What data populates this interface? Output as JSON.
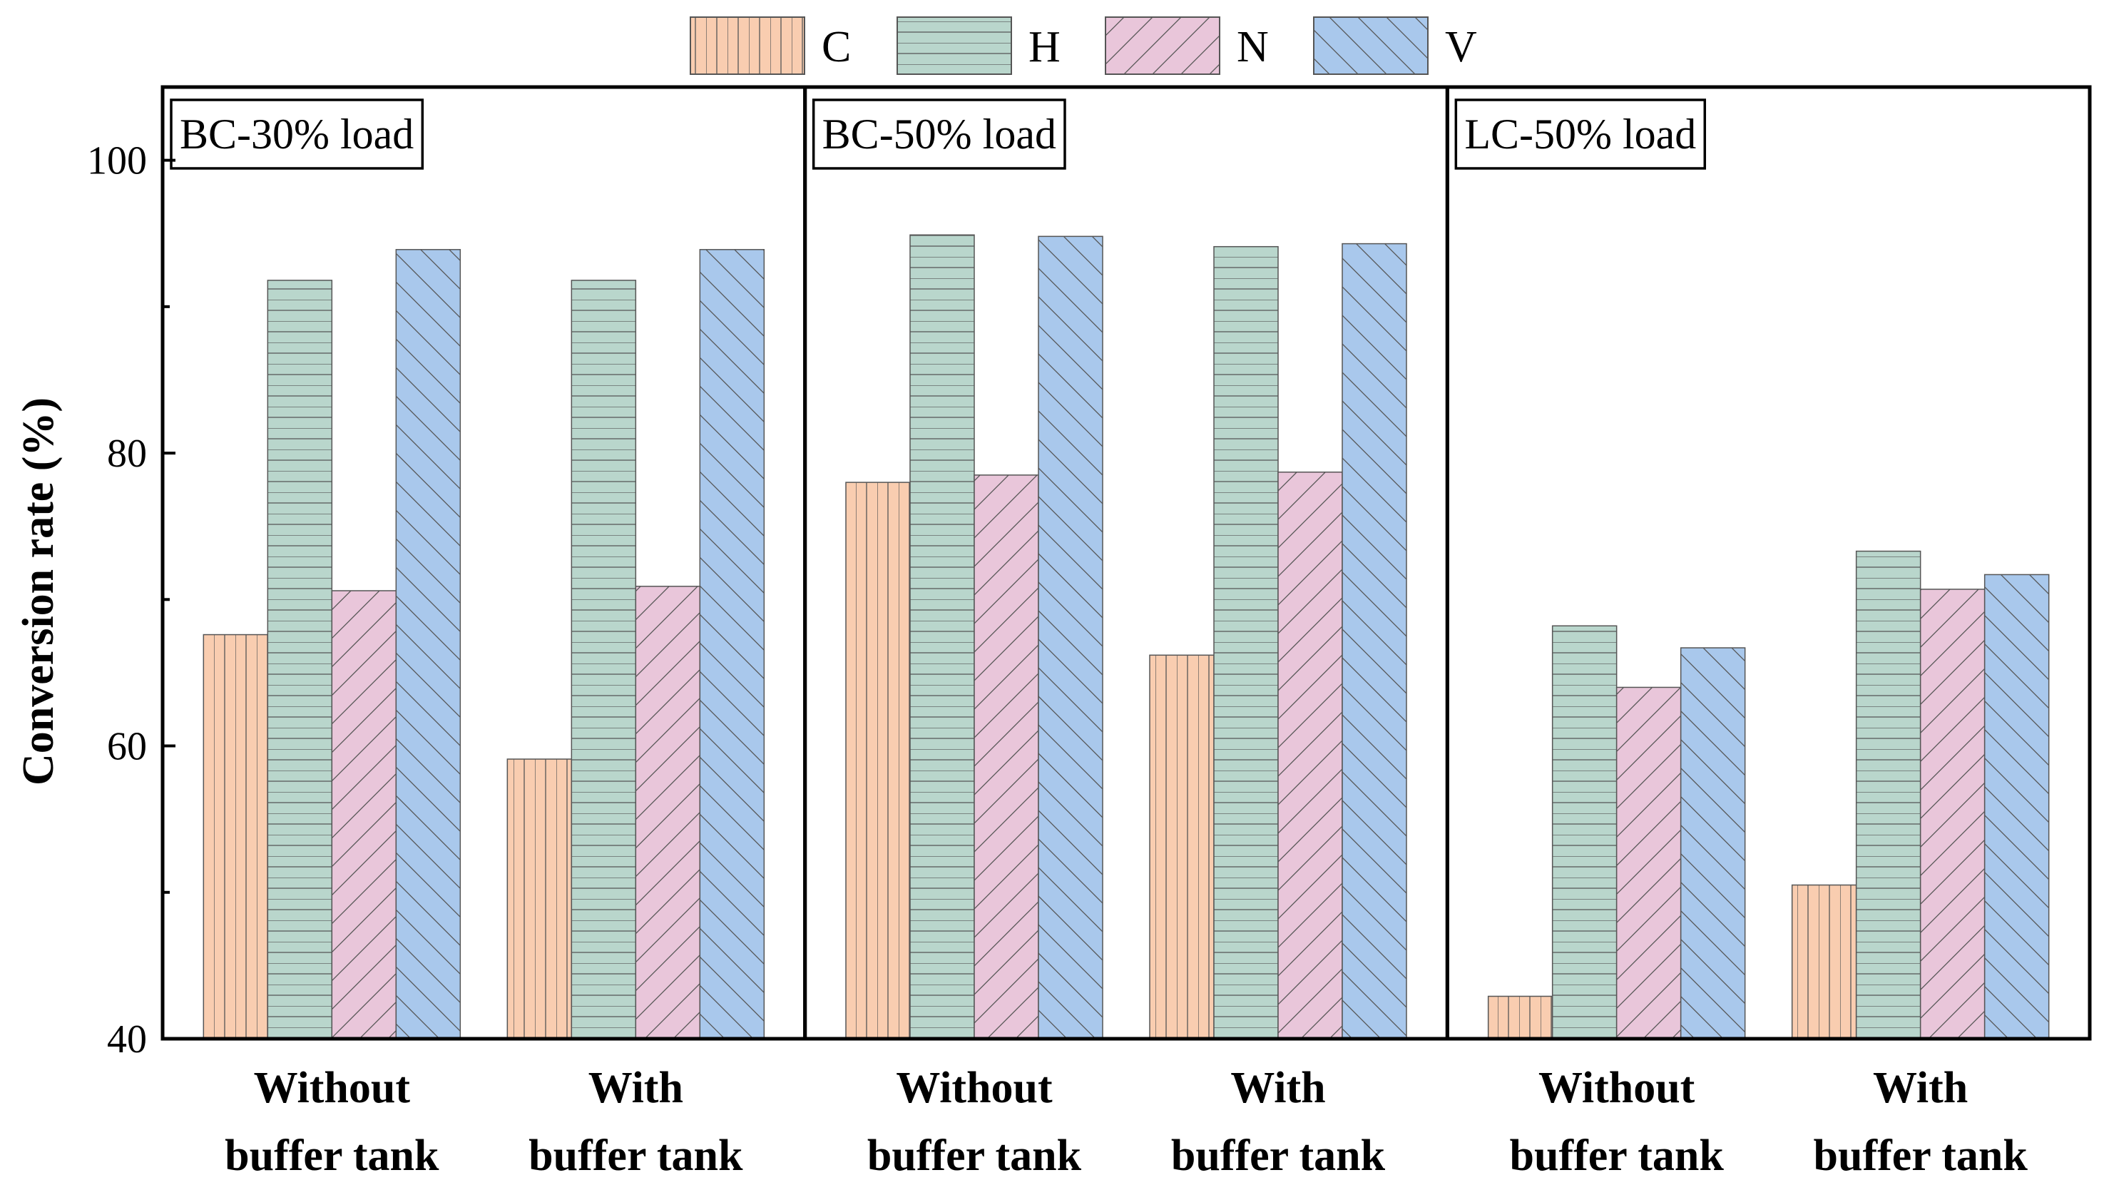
{
  "chart_data": {
    "type": "bar",
    "ylabel": "Conversion rate (%)",
    "ylim": [
      40,
      105
    ],
    "yticks": [
      "40",
      "60",
      "80",
      "100"
    ],
    "series": [
      {
        "name": "C",
        "color": "#f9cdb0",
        "pattern": "vertical-lines"
      },
      {
        "name": "H",
        "color": "#b9d6cc",
        "pattern": "horizontal-lines"
      },
      {
        "name": "N",
        "color": "#e9c6da",
        "pattern": "forward-diagonal"
      },
      {
        "name": "V",
        "color": "#a9c8ec",
        "pattern": "back-diagonal"
      }
    ],
    "panels": [
      {
        "label": "BC-30% load",
        "groups": [
          {
            "line1": "Without",
            "line2": "buffer tank",
            "values": [
              67.6,
              91.8,
              70.6,
              93.9
            ]
          },
          {
            "line1": "With",
            "line2": "buffer tank",
            "values": [
              59.1,
              91.8,
              70.9,
              93.9
            ]
          }
        ]
      },
      {
        "label": "BC-50% load",
        "groups": [
          {
            "line1": "Without",
            "line2": "buffer tank",
            "values": [
              78.0,
              94.9,
              78.5,
              94.8
            ]
          },
          {
            "line1": "With",
            "line2": "buffer tank",
            "values": [
              66.2,
              94.1,
              78.7,
              94.3
            ]
          }
        ]
      },
      {
        "label": "LC-50% load",
        "groups": [
          {
            "line1": "Without",
            "line2": "buffer tank",
            "values": [
              42.9,
              68.2,
              64.0,
              66.7
            ]
          },
          {
            "line1": "With",
            "line2": "buffer tank",
            "values": [
              50.5,
              73.3,
              70.7,
              71.7
            ]
          }
        ]
      }
    ]
  }
}
